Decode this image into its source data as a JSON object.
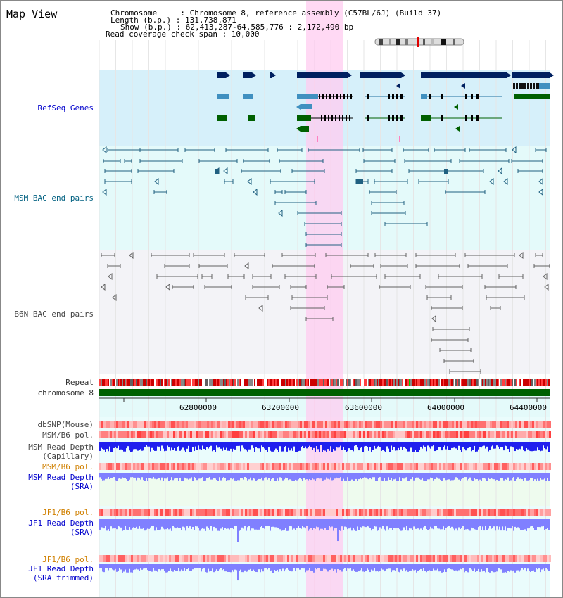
{
  "header": {
    "title": "Map View",
    "chromosome_line": "Chromosome     : Chromosome 8, reference assembly (C57BL/6J) (Build 37)",
    "length_line": "Length (b.p.) : 131,738,871",
    "show_line": "Show (b.p.) : 62,413,287-64,585,776 : 2,172,490 bp",
    "coverage_line": "Read coverage check span : 10,000"
  },
  "tracks": {
    "refseq": "RefSeq Genes",
    "msm_bac": "MSM BAC end pairs",
    "b6n_bac": "B6N BAC end pairs",
    "repeat": "Repeat",
    "chromosome": "chromosome 8",
    "dbsnp": "dbSNP(Mouse)",
    "msm_pol1": "MSM/B6 pol.",
    "msm_depth_cap_1": "MSM Read Depth",
    "msm_depth_cap_2": "(Capillary)",
    "msm_pol2": "MSM/B6 pol.",
    "msm_depth_sra_1": "MSM Read Depth",
    "msm_depth_sra_2": "(SRA)",
    "jf1_pol1": "JF1/B6 pol.",
    "jf1_depth_1": "JF1 Read Depth",
    "jf1_depth_2": "(SRA)",
    "jf1_pol2": "JF1/B6 pol.",
    "jf1_depth_tr_1": "JF1 Read Depth",
    "jf1_depth_tr_2": "(SRA trimmed)"
  },
  "axis": {
    "ticks": [
      "62800000",
      "63200000",
      "63600000",
      "64000000",
      "64400000"
    ]
  },
  "colors": {
    "highlight": "#ffccf0",
    "refseq_bg": "#d6f0fa",
    "gene_navy": "#002060",
    "gene_lightblue": "#4090c0",
    "gene_green": "#006000",
    "bac_teal": "#206080",
    "bac_gray": "#606060",
    "chrom_green": "#006000",
    "depth_blue": "#2020ee",
    "depth_lavender": "#8080ff"
  }
}
